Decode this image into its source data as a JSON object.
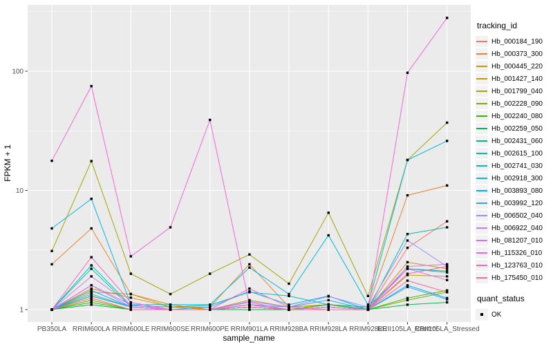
{
  "chart_data": {
    "type": "line",
    "title": "",
    "xlabel": "sample_name",
    "ylabel": "FPKM + 1",
    "y_scale": "log10",
    "y_ticks": [
      1,
      10,
      100
    ],
    "y_minor_ticks": [
      3.162,
      31.62,
      316.2
    ],
    "ylim": [
      1,
      280
    ],
    "grid": "on",
    "legend_position": "right",
    "marker": "black-square",
    "categories": [
      "PB350LA",
      "RRIM600LA",
      "RRIM600LE",
      "RRIM600SE",
      "RRIM600PE",
      "RRIM901LA",
      "RRIM928BA",
      "RRIM928LA",
      "RRIM928LE",
      "RRII105LA_Control",
      "RRII105LA_Stressed"
    ],
    "series": [
      {
        "name": "Hb_000184_190",
        "color": "#F8766D",
        "values": [
          1.0,
          1.3,
          1.05,
          1.0,
          1.0,
          1.05,
          1.0,
          1.05,
          1.0,
          3.3,
          5.5
        ]
      },
      {
        "name": "Hb_000373_300",
        "color": "#EA8331",
        "values": [
          2.4,
          4.8,
          1.35,
          1.05,
          1.05,
          2.4,
          1.05,
          1.1,
          1.05,
          9.1,
          11.0
        ]
      },
      {
        "name": "Hb_000445_220",
        "color": "#D89000",
        "values": [
          1.0,
          1.5,
          1.26,
          1.05,
          1.0,
          1.2,
          1.05,
          1.1,
          1.0,
          2.5,
          2.2
        ]
      },
      {
        "name": "Hb_001427_140",
        "color": "#C09B00",
        "values": [
          1.0,
          1.4,
          1.35,
          1.1,
          1.0,
          1.1,
          1.0,
          1.05,
          1.0,
          1.95,
          1.9
        ]
      },
      {
        "name": "Hb_001799_040",
        "color": "#A3A500",
        "values": [
          3.1,
          17.6,
          2.0,
          1.35,
          2.0,
          2.9,
          1.65,
          6.5,
          1.3,
          18.0,
          37.0
        ]
      },
      {
        "name": "Hb_002228_090",
        "color": "#7CAE00",
        "values": [
          1.0,
          1.2,
          1.0,
          1.0,
          1.0,
          1.05,
          1.0,
          1.1,
          1.0,
          1.2,
          1.4
        ]
      },
      {
        "name": "Hb_002240_080",
        "color": "#39B600",
        "values": [
          1.0,
          1.15,
          1.0,
          1.0,
          1.0,
          1.0,
          1.0,
          1.11,
          1.0,
          1.25,
          1.45
        ]
      },
      {
        "name": "Hb_002259_050",
        "color": "#00BB4E",
        "values": [
          1.0,
          1.1,
          1.0,
          1.0,
          1.0,
          1.0,
          1.0,
          1.05,
          1.0,
          1.1,
          1.15
        ]
      },
      {
        "name": "Hb_002431_060",
        "color": "#00BF7D",
        "values": [
          1.0,
          1.3,
          1.05,
          1.0,
          1.0,
          1.05,
          1.0,
          1.0,
          1.0,
          2.2,
          2.1
        ]
      },
      {
        "name": "Hb_002615_100",
        "color": "#00C1A3",
        "values": [
          1.0,
          2.2,
          1.05,
          1.0,
          1.0,
          1.1,
          1.0,
          1.05,
          1.0,
          4.3,
          4.9
        ]
      },
      {
        "name": "Hb_002741_030",
        "color": "#00BFC4",
        "values": [
          1.0,
          2.35,
          1.08,
          1.05,
          1.09,
          1.4,
          1.3,
          1.1,
          1.05,
          2.2,
          2.05
        ]
      },
      {
        "name": "Hb_002918_300",
        "color": "#00BAE0",
        "values": [
          4.8,
          8.5,
          1.1,
          1.1,
          1.1,
          2.25,
          1.35,
          4.2,
          1.1,
          18.0,
          26.0
        ]
      },
      {
        "name": "Hb_003893_080",
        "color": "#00B0F6",
        "values": [
          1.0,
          1.45,
          1.05,
          1.0,
          1.05,
          1.42,
          1.1,
          1.3,
          1.0,
          1.6,
          1.25
        ]
      },
      {
        "name": "Hb_003992_120",
        "color": "#35A2FF",
        "values": [
          1.0,
          1.35,
          1.05,
          1.0,
          1.0,
          1.1,
          1.05,
          1.2,
          1.0,
          1.55,
          1.22
        ]
      },
      {
        "name": "Hb_006502_040",
        "color": "#9590FF",
        "values": [
          1.0,
          1.6,
          1.1,
          1.0,
          1.0,
          1.17,
          1.05,
          1.29,
          1.05,
          3.8,
          2.3
        ]
      },
      {
        "name": "Hb_006922_040",
        "color": "#C77CFF",
        "values": [
          1.0,
          1.9,
          1.1,
          1.0,
          1.0,
          1.15,
          1.0,
          1.05,
          1.0,
          2.3,
          2.4
        ]
      },
      {
        "name": "Hb_081207_010",
        "color": "#E76BF3",
        "values": [
          1.0,
          1.6,
          1.05,
          1.0,
          1.0,
          1.1,
          1.0,
          1.0,
          1.0,
          2.2,
          1.77
        ]
      },
      {
        "name": "Hb_115326_010",
        "color": "#FA62DB",
        "values": [
          17.7,
          75.0,
          2.8,
          4.9,
          39.0,
          1.1,
          1.0,
          1.0,
          1.0,
          97.0,
          280.0
        ]
      },
      {
        "name": "Hb_123763_010",
        "color": "#FF62BC",
        "values": [
          1.0,
          2.75,
          1.15,
          1.0,
          1.0,
          1.5,
          1.05,
          1.0,
          1.0,
          2.0,
          2.3
        ]
      },
      {
        "name": "Hb_175450_010",
        "color": "#FF6A98",
        "values": [
          1.0,
          1.25,
          1.0,
          1.0,
          1.0,
          1.05,
          1.0,
          1.0,
          1.0,
          1.75,
          1.4
        ]
      }
    ]
  },
  "legend": {
    "tracking_title": "tracking_id",
    "quant_title": "quant_status",
    "quant_items": [
      {
        "label": "OK"
      }
    ]
  },
  "colors": {
    "panel_bg": "#EBEBEB",
    "grid": "#FFFFFF",
    "tick_text": "#4D4D4D",
    "axis_title": "#000000",
    "marker": "#000000",
    "legend_key_bg": "#F2F2F2"
  }
}
